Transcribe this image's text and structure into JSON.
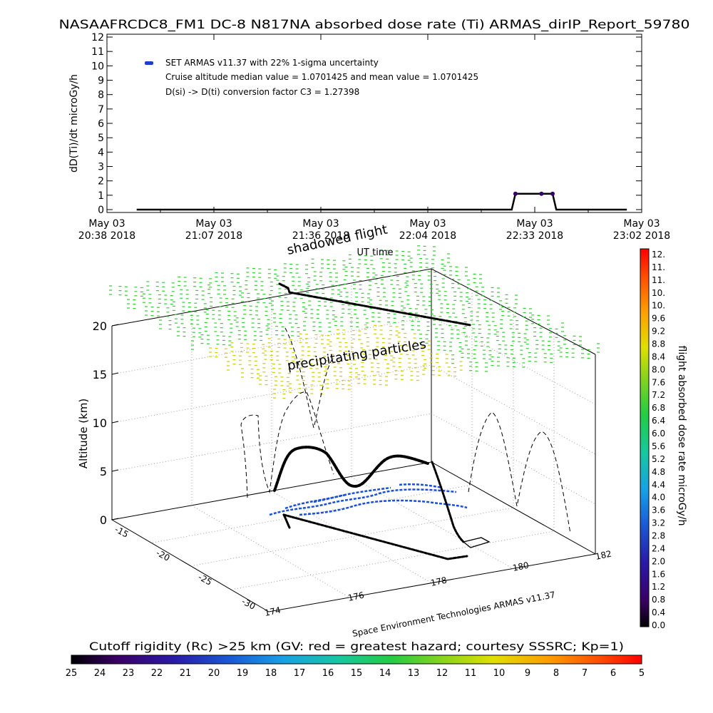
{
  "title": "NASAAFRCDC8_FM1 DC-8   N817NA absorbed dose rate (Ti) ARMAS_dirIP_Report_59780",
  "colors": {
    "trace": "#000000",
    "dose_marker": "#330066",
    "legend_marker": "#1a3fcc",
    "green_field": "#33cc33",
    "yellow_field": "#cccc00",
    "blue_contour": "#1a4fd6"
  },
  "chart_data": [
    {
      "type": "line",
      "ylabel": "dD(Ti)/dt microGy/h",
      "xlabel": "UT time",
      "ylim": [
        0,
        12
      ],
      "yticks": [
        "0",
        "1",
        "2",
        "3",
        "4",
        "5",
        "6",
        "7",
        "8",
        "9",
        "10",
        "11",
        "12"
      ],
      "xticks": [
        {
          "date": "May 03",
          "time": "20:38 2018"
        },
        {
          "date": "May 03",
          "time": "21:07 2018"
        },
        {
          "date": "May 03",
          "time": "21:36 2018"
        },
        {
          "date": "May 03",
          "time": "22:04 2018"
        },
        {
          "date": "May 03",
          "time": "22:33 2018"
        },
        {
          "date": "May 03",
          "time": "23:02 2018"
        }
      ],
      "legend": [
        "SET ARMAS v11.37 with 22% 1-sigma uncertainty",
        "Cruise altitude median value = 1.0701425 and mean value = 1.0701425",
        "D(si) -> D(ti) conversion factor C3 = 1.27398"
      ],
      "series": [
        {
          "x": [
            "20:46",
            "20:55",
            "21:05",
            "21:15",
            "21:25",
            "21:35",
            "21:45",
            "21:55",
            "22:05",
            "22:15",
            "22:25",
            "22:27",
            "22:28",
            "22:35",
            "22:38",
            "22:39",
            "22:45",
            "22:55",
            "22:58"
          ],
          "y": [
            0,
            0,
            0,
            0,
            0,
            0,
            0,
            0,
            0,
            0,
            0,
            0,
            1.07,
            1.07,
            1.07,
            0,
            0,
            0,
            0
          ]
        }
      ]
    },
    {
      "type": "scatter",
      "zlabel": "Altitude (km)",
      "zticks": [
        "0",
        "5",
        "10",
        "15",
        "20"
      ],
      "lat_ticks": [
        "-15",
        "-20",
        "-25",
        "-30"
      ],
      "lon_ticks": [
        "174",
        "176",
        "178",
        "180",
        "182"
      ],
      "annotations": [
        "shadowed flight",
        "precipitating particles"
      ],
      "overlap_text": "UT time"
    }
  ],
  "dose_colorbar": {
    "label": "flight absorbed dose rate microGy/h",
    "ticks": [
      "12.",
      "11.",
      "11.",
      "10.",
      "10.",
      "9.6",
      "9.2",
      "8.8",
      "8.4",
      "8.0",
      "7.6",
      "7.2",
      "6.8",
      "6.4",
      "6.0",
      "5.6",
      "5.2",
      "4.8",
      "4.4",
      "4.0",
      "3.6",
      "3.2",
      "2.8",
      "2.4",
      "2.0",
      "1.6",
      "1.2",
      "0.8",
      "0.4",
      "0.0"
    ]
  },
  "rigidity_colorbar": {
    "label": "Cutoff rigidity (Rc) >25 km (GV: red = greatest hazard; courtesy SSSRC; Kp=1)",
    "ticks": [
      "25",
      "24",
      "23",
      "22",
      "21",
      "20",
      "19",
      "18",
      "17",
      "16",
      "15",
      "14",
      "13",
      "12",
      "11",
      "10",
      "9",
      "8",
      "7",
      "6",
      "5"
    ]
  },
  "credit": "Space Environment Technologies ARMAS v11.37"
}
